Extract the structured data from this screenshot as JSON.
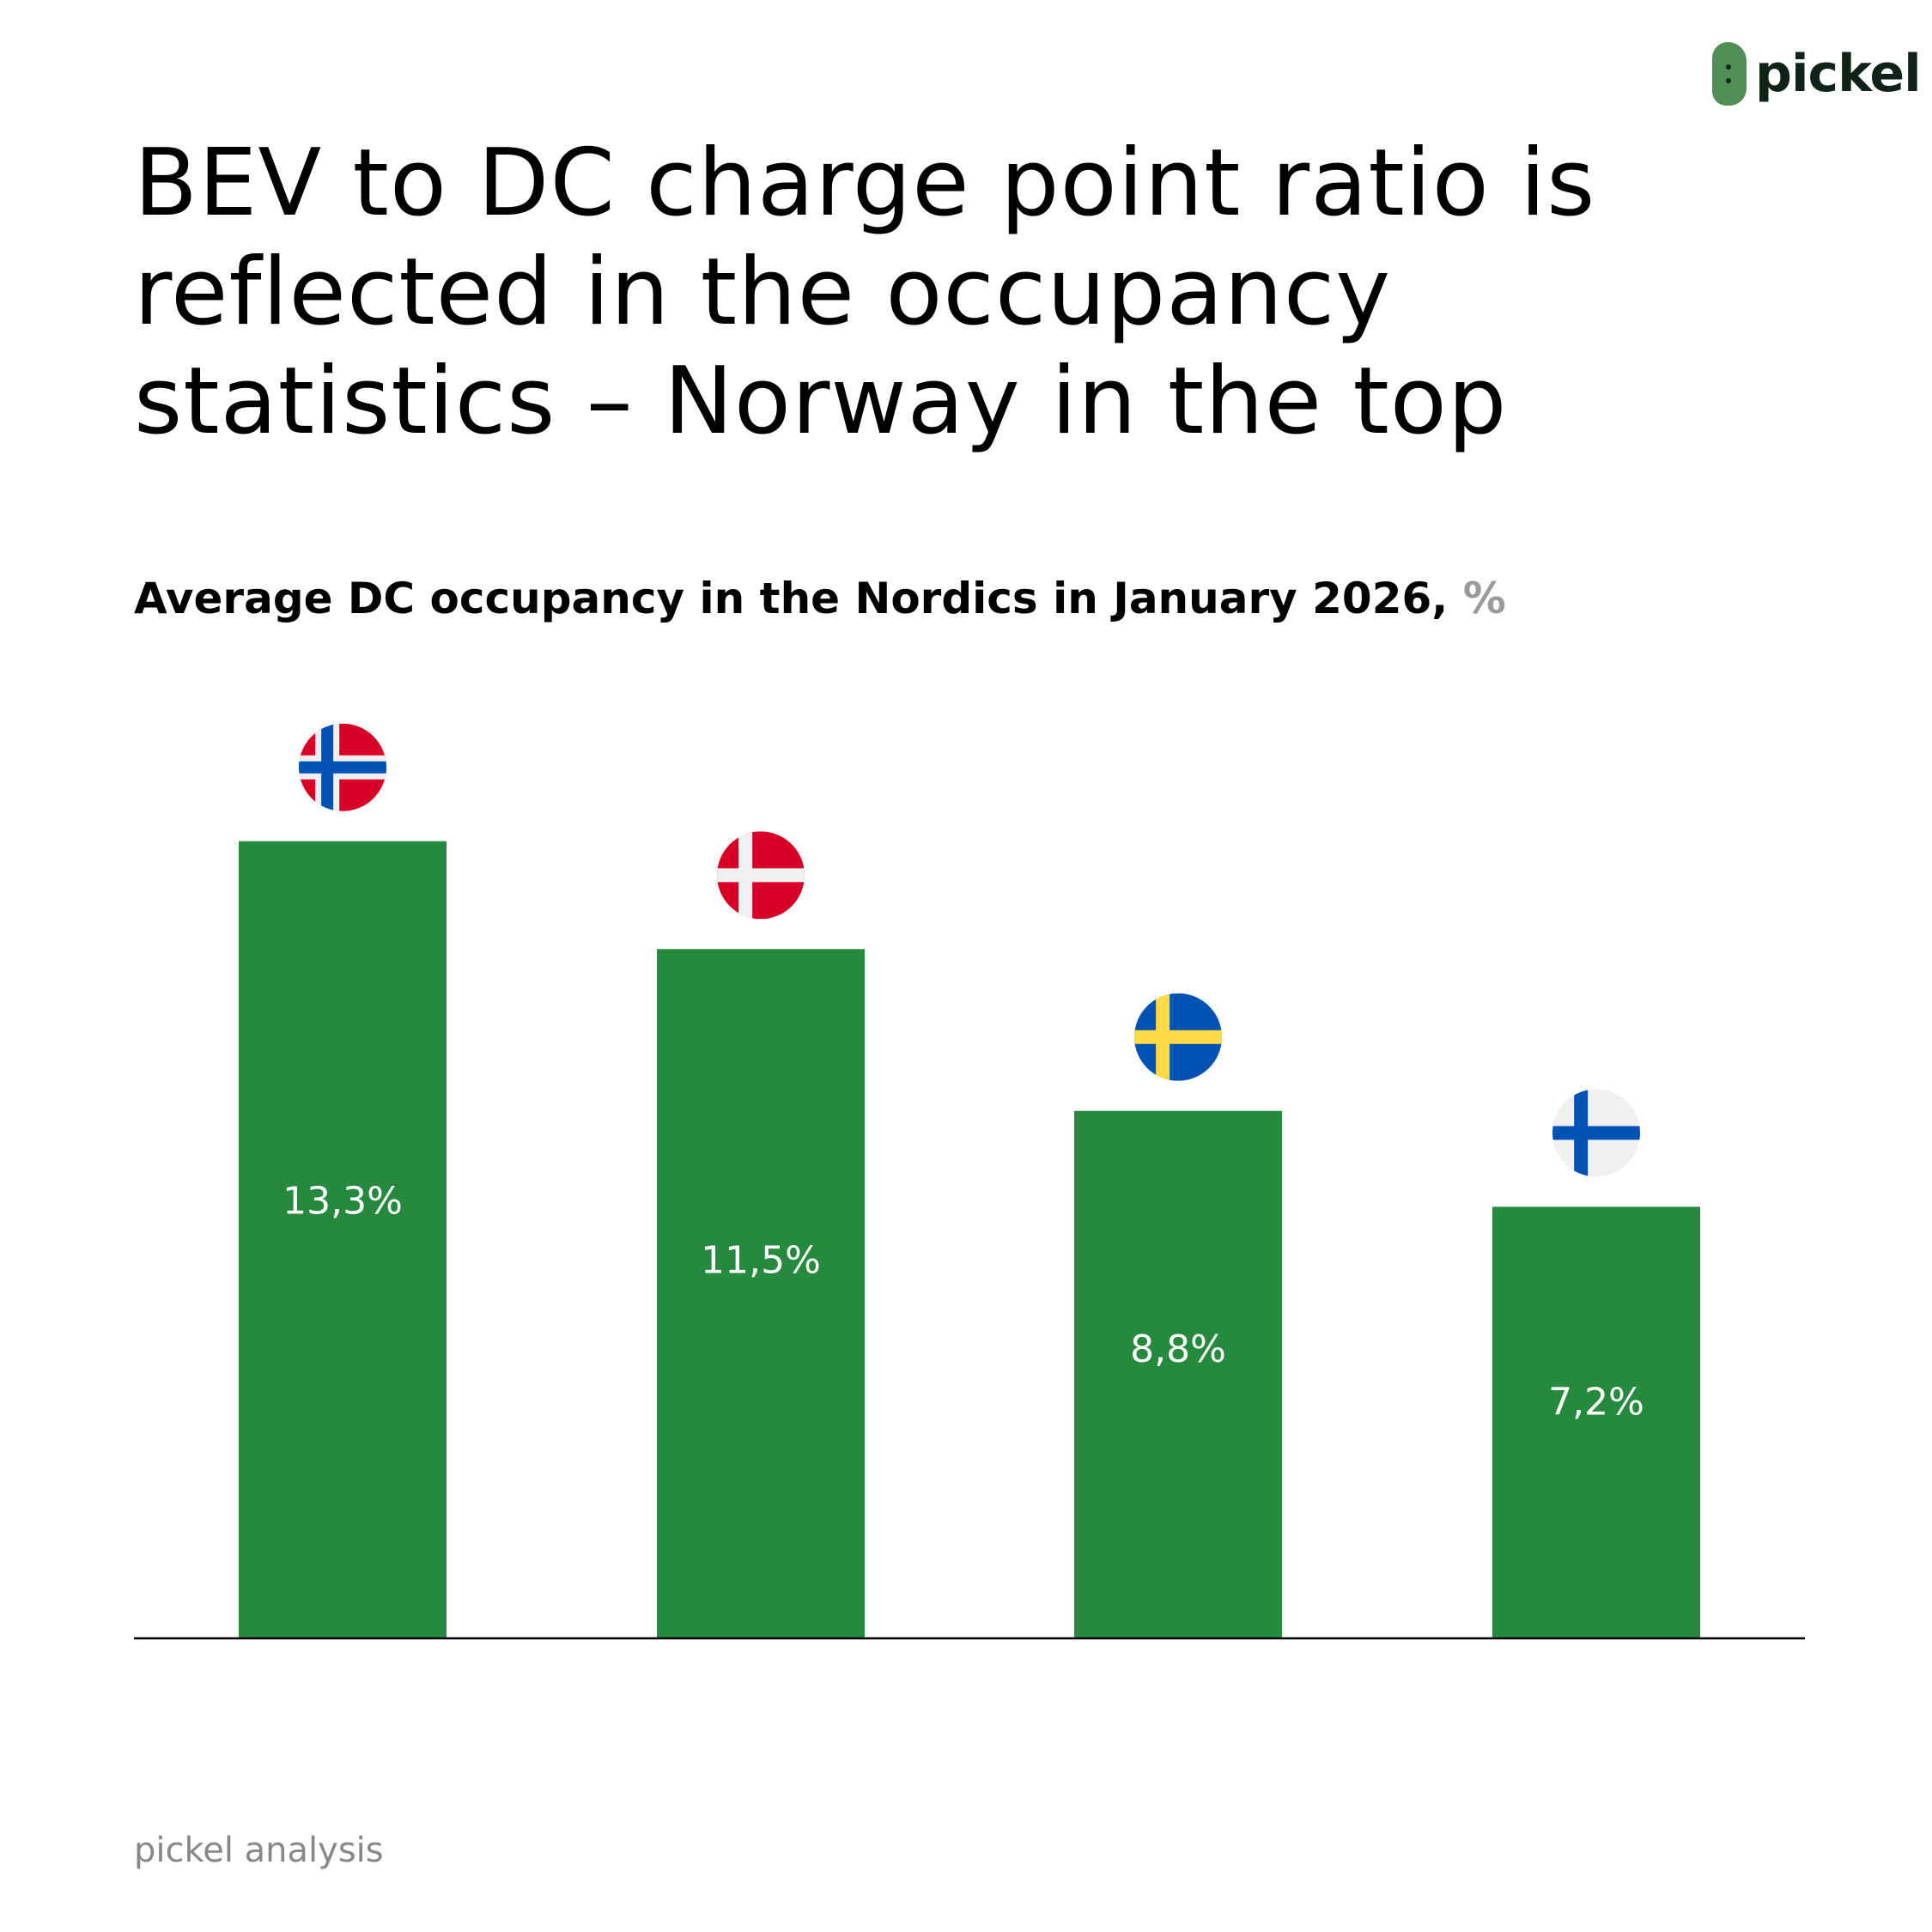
{
  "logo": {
    "text": "pickel"
  },
  "chart_data": {
    "type": "bar",
    "title": "BEV to DC charge point ratio is reflected in the occupancy statistics – Norway in the top",
    "subtitle": "Average DC occupancy in the Nordics in January 2026,",
    "unit": "%",
    "categories": [
      "Norway",
      "Denmark",
      "Sweden",
      "Finland"
    ],
    "category_icons": [
      "flag-norway",
      "flag-denmark",
      "flag-sweden",
      "flag-finland"
    ],
    "values": [
      13.3,
      11.5,
      8.8,
      7.2
    ],
    "data_labels": [
      "13,3%",
      "11,5%",
      "8,8%",
      "7,2%"
    ],
    "xlabel": "",
    "ylabel": "",
    "grid": false,
    "bar_color": "#268a3e"
  },
  "footer": {
    "source": "pickel analysis"
  }
}
